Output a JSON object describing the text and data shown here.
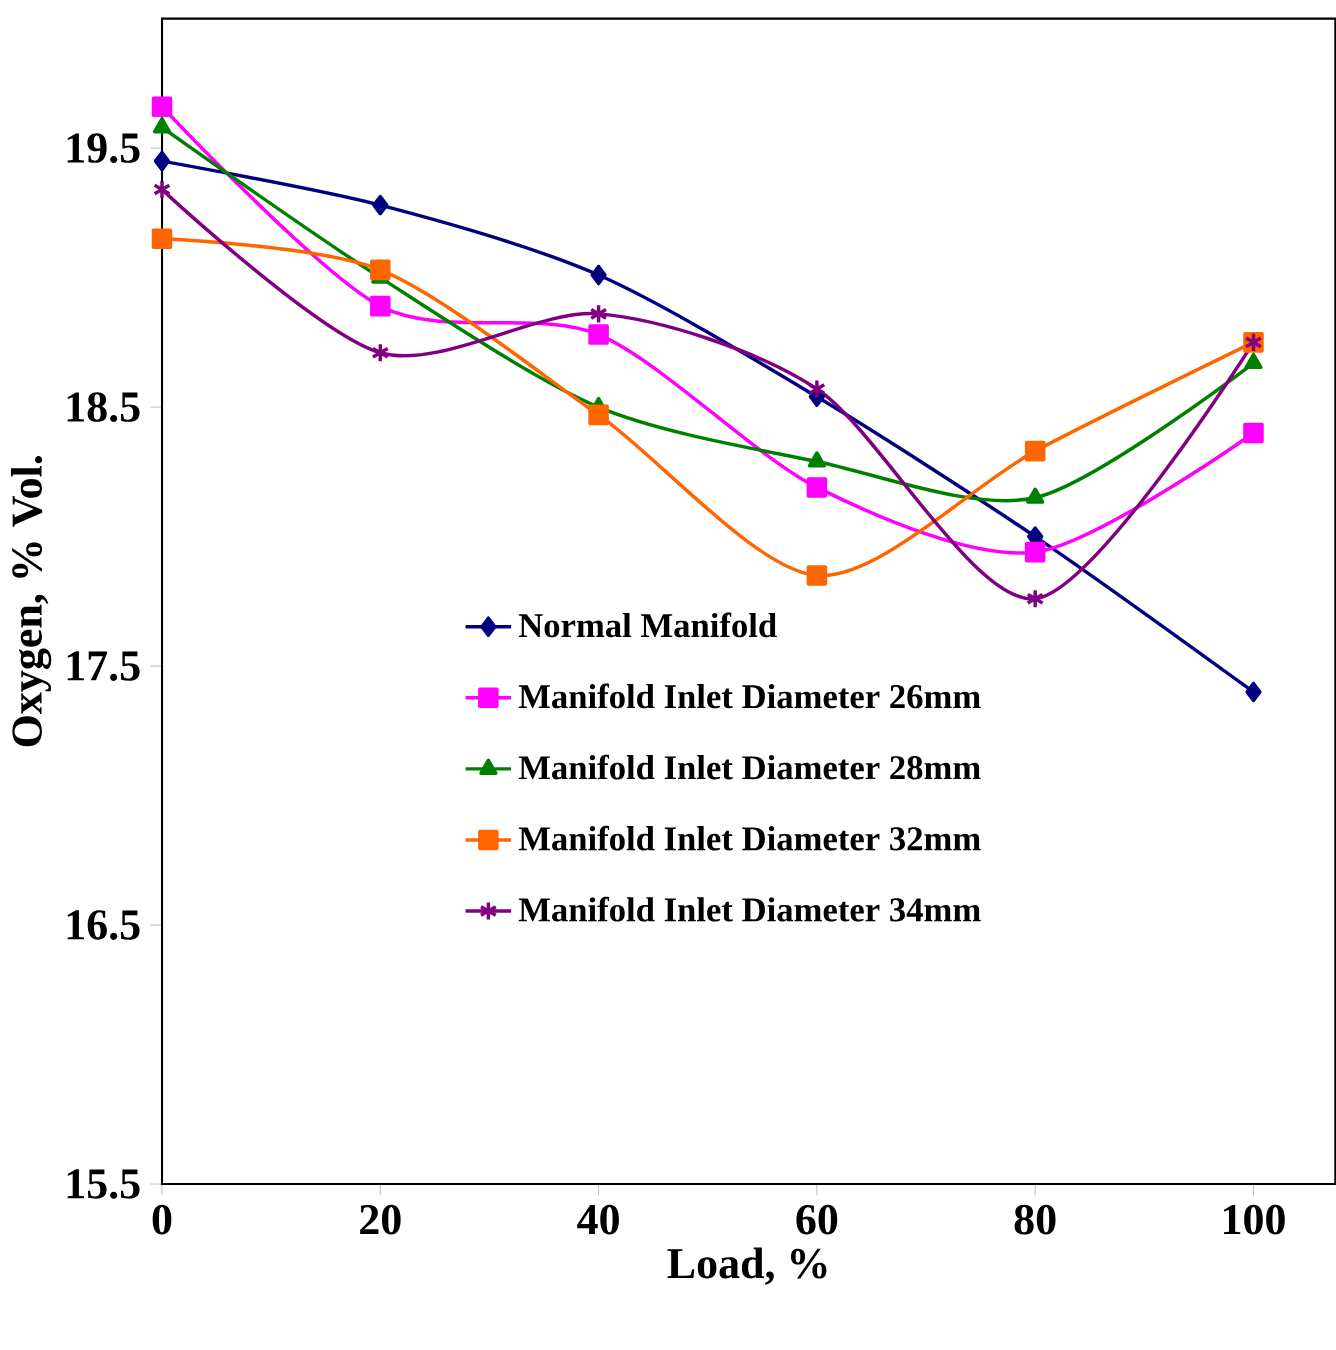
{
  "chart_data": {
    "type": "line",
    "xlabel": "Load, %",
    "ylabel": "Oxygen, % Vol.",
    "x": [
      0,
      20,
      40,
      60,
      80,
      100
    ],
    "xlim": [
      0,
      107.5
    ],
    "xticks": [
      0,
      20,
      40,
      60,
      80,
      100
    ],
    "ylim": [
      15.5,
      20
    ],
    "yticks": [
      15.5,
      16.5,
      17.5,
      18.5,
      19.5
    ],
    "legend": "center",
    "grid": false,
    "series": [
      {
        "name": "Normal Manifold",
        "color": "#000080",
        "marker": "diamond",
        "values": [
          19.45,
          19.28,
          19.01,
          18.54,
          18.0,
          17.4
        ]
      },
      {
        "name": "Manifold Inlet Diameter 26mm",
        "color": "#ff00ff",
        "marker": "square",
        "values": [
          19.66,
          18.89,
          18.78,
          18.19,
          17.94,
          18.4
        ]
      },
      {
        "name": "Manifold Inlet Diameter 28mm",
        "color": "#008000",
        "marker": "triangle",
        "values": [
          19.58,
          19.0,
          18.5,
          18.29,
          18.15,
          18.67
        ]
      },
      {
        "name": "Manifold Inlet Diameter 32mm",
        "color": "#ff6600",
        "marker": "square",
        "values": [
          19.15,
          19.03,
          18.47,
          17.85,
          18.33,
          18.75
        ]
      },
      {
        "name": "Manifold Inlet Diameter 34mm",
        "color": "#800080",
        "marker": "cross",
        "values": [
          19.34,
          18.71,
          18.86,
          18.57,
          17.76,
          18.75
        ]
      }
    ]
  }
}
